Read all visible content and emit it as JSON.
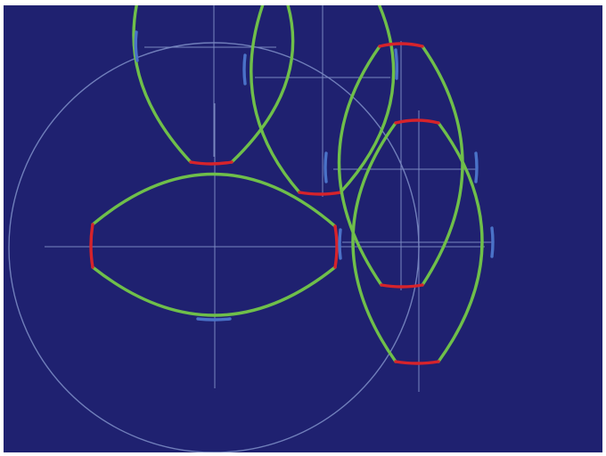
{
  "canvas": {
    "background": "#1f2170"
  },
  "colors": {
    "edge": "#6fbf4a",
    "vertex": "#d6232b",
    "midpoint": "#4a72c8",
    "construction": "#8a9ad0",
    "outline": "#7f8fc8"
  },
  "diagram": {
    "description_visible_text": "",
    "shapes": [
      {
        "kind": "lens",
        "name": "lens-left-horizontal",
        "orientation": "horizontal",
        "color_parts": [
          "vertex-left",
          "vertex-right",
          "midpoint-bottom",
          "edges"
        ]
      },
      {
        "kind": "lens",
        "name": "lens-top-left",
        "orientation": "vertical",
        "color_parts": [
          "vertex-bottom",
          "midpoint-left"
        ]
      },
      {
        "kind": "lens",
        "name": "lens-top-middle",
        "orientation": "vertical",
        "color_parts": [
          "vertex-bottom",
          "midpoint-left",
          "midpoint-right"
        ]
      },
      {
        "kind": "lens",
        "name": "lens-right-upper",
        "orientation": "vertical",
        "color_parts": [
          "vertex-top",
          "vertex-bottom",
          "midpoint-left",
          "midpoint-right"
        ]
      },
      {
        "kind": "lens",
        "name": "lens-right-lower",
        "orientation": "vertical",
        "color_parts": [
          "vertex-top",
          "vertex-bottom",
          "midpoint-left",
          "midpoint-right"
        ]
      }
    ]
  }
}
